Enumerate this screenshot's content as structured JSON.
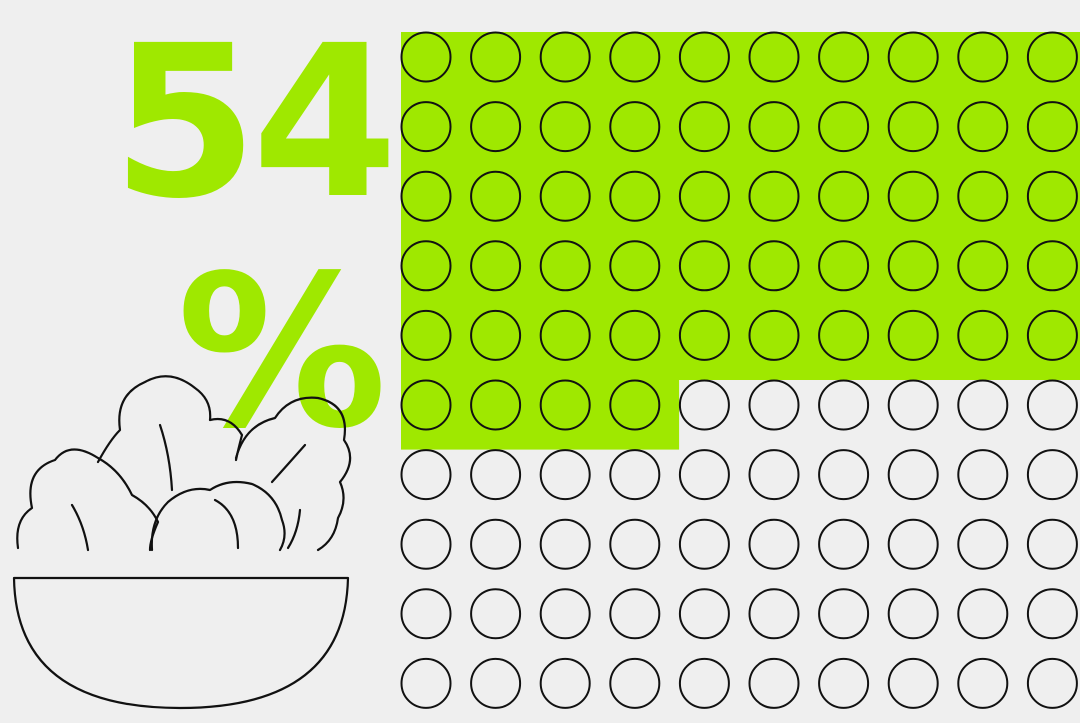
{
  "colors": {
    "background": "#efefef",
    "accent": "#9fe800",
    "stroke": "#111111"
  },
  "headline": {
    "number": "54",
    "percent_sign": "%"
  },
  "illustration": {
    "icon": "salad-bowl-icon"
  },
  "chart_data": {
    "type": "waffle",
    "value_percent": 54,
    "total_units": 100,
    "filled_units": 54,
    "rows": 10,
    "columns": 10,
    "fill_order": "row-major-from-top-left"
  }
}
